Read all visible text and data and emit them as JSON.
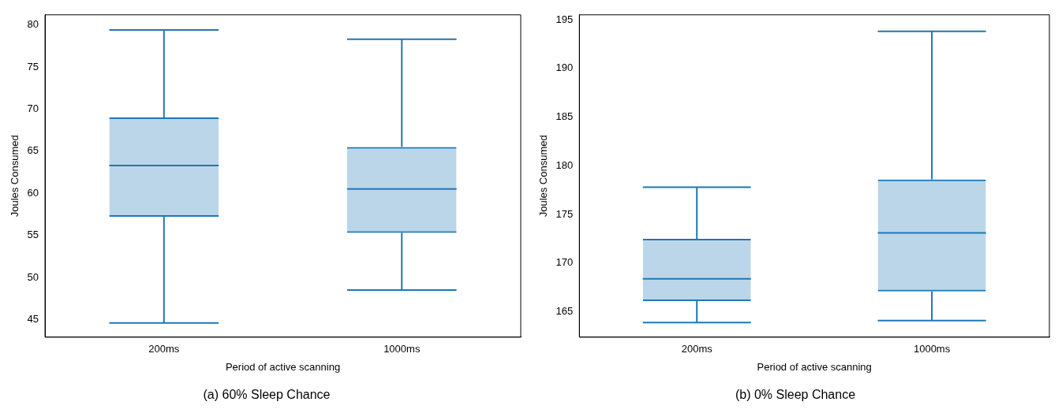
{
  "chart_data": [
    {
      "type": "box",
      "title": "(a) 60% Sleep Chance",
      "xlabel": "Period of active scanning",
      "ylabel": "Joules Consumed",
      "categories": [
        "200ms",
        "1000ms"
      ],
      "color": "#1f77b4",
      "boxes": [
        {
          "low": 44.6,
          "q1": 57.2,
          "median": 63.3,
          "q3": 69.0,
          "high": 79.4
        },
        {
          "low": 48.5,
          "q1": 55.3,
          "median": 60.5,
          "q3": 65.5,
          "high": 78.3
        }
      ],
      "ylim": [
        42.9,
        81.2
      ],
      "yticks": [
        45,
        50,
        55,
        60,
        65,
        70,
        75,
        80
      ],
      "grid": false,
      "legend": false
    },
    {
      "type": "box",
      "title": "(b) 0% Sleep Chance",
      "xlabel": "Period of active scanning",
      "ylabel": "Joules Consumed",
      "categories": [
        "200ms",
        "1000ms"
      ],
      "color": "#1f77b4",
      "boxes": [
        {
          "low": 163.9,
          "q1": 166.1,
          "median": 168.4,
          "q3": 172.5,
          "high": 177.8
        },
        {
          "low": 164.1,
          "q1": 167.1,
          "median": 173.1,
          "q3": 178.6,
          "high": 193.8
        }
      ],
      "ylim": [
        162.4,
        195.5
      ],
      "yticks": [
        165,
        170,
        175,
        180,
        185,
        190,
        195
      ],
      "grid": false,
      "legend": false
    }
  ]
}
